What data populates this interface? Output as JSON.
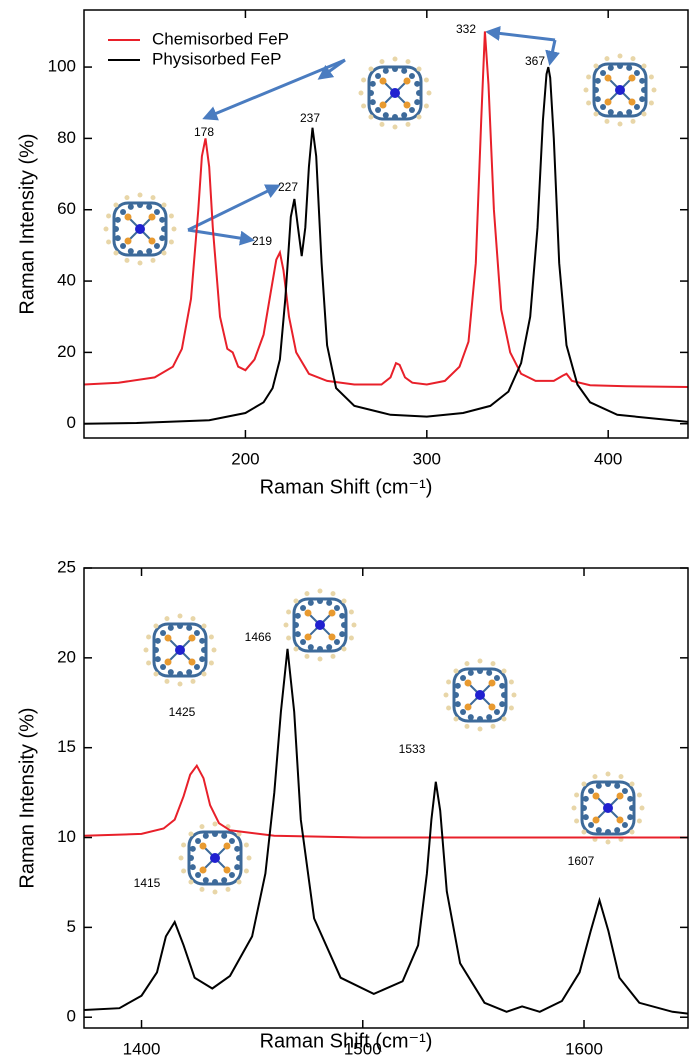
{
  "chart_data": [
    {
      "type": "line",
      "x_label": "Raman Shift (cm⁻¹)",
      "y_label": "Raman Intensity (%)",
      "xlim": [
        111,
        444
      ],
      "ylim": [
        -4,
        116
      ],
      "xticks": [
        200,
        300,
        400
      ],
      "yticks": [
        0,
        20,
        40,
        60,
        80,
        100
      ],
      "legend": "upper left",
      "annotations": [
        "178",
        "237",
        "332",
        "367",
        "227",
        "219"
      ],
      "series": [
        {
          "name": "Chemisorbed FeP",
          "color": "#e8202a",
          "x": [
            111,
            130,
            150,
            160,
            165,
            170,
            174,
            176,
            178,
            180,
            182,
            186,
            190,
            193,
            196,
            200,
            205,
            210,
            214,
            217,
            219,
            221,
            224,
            228,
            235,
            245,
            260,
            275,
            280,
            283,
            285,
            288,
            292,
            300,
            310,
            318,
            323,
            327,
            330,
            332,
            334,
            337,
            341,
            346,
            352,
            360,
            370,
            375,
            377,
            380,
            390,
            410,
            444
          ],
          "values": [
            11,
            11.5,
            13,
            16,
            21,
            35,
            60,
            75,
            80,
            72,
            55,
            30,
            21,
            20,
            16,
            15,
            18,
            25,
            37,
            46,
            48,
            43,
            30,
            20,
            14,
            12,
            11,
            11,
            13,
            17,
            16.5,
            13,
            11.5,
            11,
            12,
            16,
            23,
            45,
            85,
            110,
            95,
            60,
            32,
            20,
            14,
            12,
            12,
            13.5,
            14,
            12,
            10.8,
            10.5,
            10.3
          ]
        },
        {
          "name": "Physisorbed FeP",
          "color": "#000000",
          "x": [
            111,
            140,
            160,
            180,
            200,
            210,
            215,
            219,
            222,
            225,
            227,
            229,
            231,
            233,
            235,
            237,
            239,
            242,
            245,
            250,
            260,
            280,
            300,
            320,
            335,
            345,
            352,
            357,
            361,
            364,
            366,
            367,
            368,
            370,
            373,
            377,
            383,
            390,
            405,
            444
          ],
          "values": [
            0,
            0.2,
            0.6,
            1,
            3,
            6,
            10,
            18,
            35,
            58,
            63,
            55,
            47,
            55,
            72,
            83,
            75,
            45,
            22,
            10,
            5,
            2.5,
            2,
            3,
            5,
            9,
            17,
            30,
            55,
            85,
            98,
            100,
            97,
            80,
            45,
            22,
            11,
            6,
            2.5,
            0.5
          ]
        }
      ]
    },
    {
      "type": "line",
      "x_label": "Raman Shift (cm⁻¹)",
      "y_label": "Raman Intensity (%)",
      "xlim": [
        1374,
        1647
      ],
      "ylim": [
        -0.6,
        25
      ],
      "xticks": [
        1400,
        1500,
        1600
      ],
      "yticks": [
        0,
        5,
        10,
        15,
        20,
        25
      ],
      "annotations": [
        "1425",
        "1466",
        "1415",
        "1533",
        "1607"
      ],
      "series": [
        {
          "color": "#e8202a",
          "x": [
            1374,
            1400,
            1410,
            1415,
            1419,
            1422,
            1425,
            1428,
            1431,
            1435,
            1440,
            1460,
            1500,
            1600,
            1647
          ],
          "values": [
            10.1,
            10.2,
            10.5,
            11,
            12.3,
            13.5,
            14,
            13.3,
            11.8,
            10.8,
            10.4,
            10.1,
            10,
            10,
            10
          ]
        },
        {
          "color": "#000000",
          "x": [
            1374,
            1390,
            1400,
            1407,
            1411,
            1415,
            1419,
            1424,
            1432,
            1440,
            1450,
            1456,
            1460,
            1463,
            1466,
            1469,
            1472,
            1478,
            1490,
            1505,
            1518,
            1525,
            1529,
            1531,
            1533,
            1535,
            1538,
            1544,
            1555,
            1565,
            1572,
            1580,
            1590,
            1598,
            1603,
            1607,
            1611,
            1616,
            1625,
            1640,
            1647
          ],
          "values": [
            0.4,
            0.5,
            1.2,
            2.5,
            4.5,
            5.3,
            4,
            2.2,
            1.6,
            2.3,
            4.5,
            8,
            12.5,
            17,
            20.5,
            17,
            11,
            5.5,
            2.2,
            1.3,
            2,
            4,
            8,
            11,
            13.1,
            11.5,
            7,
            3,
            0.8,
            0.3,
            0.6,
            0.3,
            0.9,
            2.5,
            4.8,
            6.5,
            4.8,
            2.2,
            0.8,
            0.3,
            0.2
          ]
        }
      ]
    }
  ]
}
